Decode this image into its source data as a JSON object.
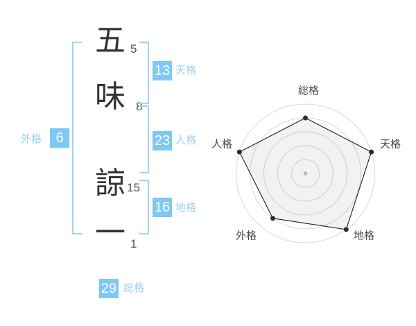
{
  "name": {
    "full": "五味諒一",
    "chars": [
      {
        "char": "五",
        "strokes": "5"
      },
      {
        "char": "味",
        "strokes": "8"
      },
      {
        "char": "諒",
        "strokes": "15"
      },
      {
        "char": "一",
        "strokes": "1"
      }
    ]
  },
  "kaku": {
    "tenkaku": {
      "value": "13",
      "label": "天格"
    },
    "jinkaku": {
      "value": "23",
      "label": "人格"
    },
    "chikaku": {
      "value": "16",
      "label": "地格"
    },
    "gaikaku": {
      "value": "6",
      "label": "外格"
    },
    "soukaku": {
      "value": "29",
      "label": "総格"
    }
  },
  "colors": {
    "badge_blue": "#7ec8f2",
    "label_blue": "#9cd2f2",
    "bracket_blue": "#9fd4f4",
    "name_text": "#333333",
    "stroke_number": "#4d4d4d",
    "background": "#ffffff"
  },
  "chart_data": {
    "type": "radar",
    "title": "",
    "categories": [
      "総格",
      "天格",
      "地格",
      "外格",
      "人格"
    ],
    "values": [
      4,
      5,
      5,
      4,
      5
    ],
    "max": 5,
    "rings": 5,
    "grid_shape": "circle",
    "start_angle_deg": -90,
    "direction": "clockwise",
    "legend": "none",
    "style": {
      "ring_color": "#d8d8d8",
      "fill": "rgba(0,0,0,0.05)",
      "stroke": "#1f1f1f",
      "point_color": "#2b2b2b",
      "center_dot_color": "#c1c1c1",
      "label_color": "#4a4a4a"
    }
  }
}
